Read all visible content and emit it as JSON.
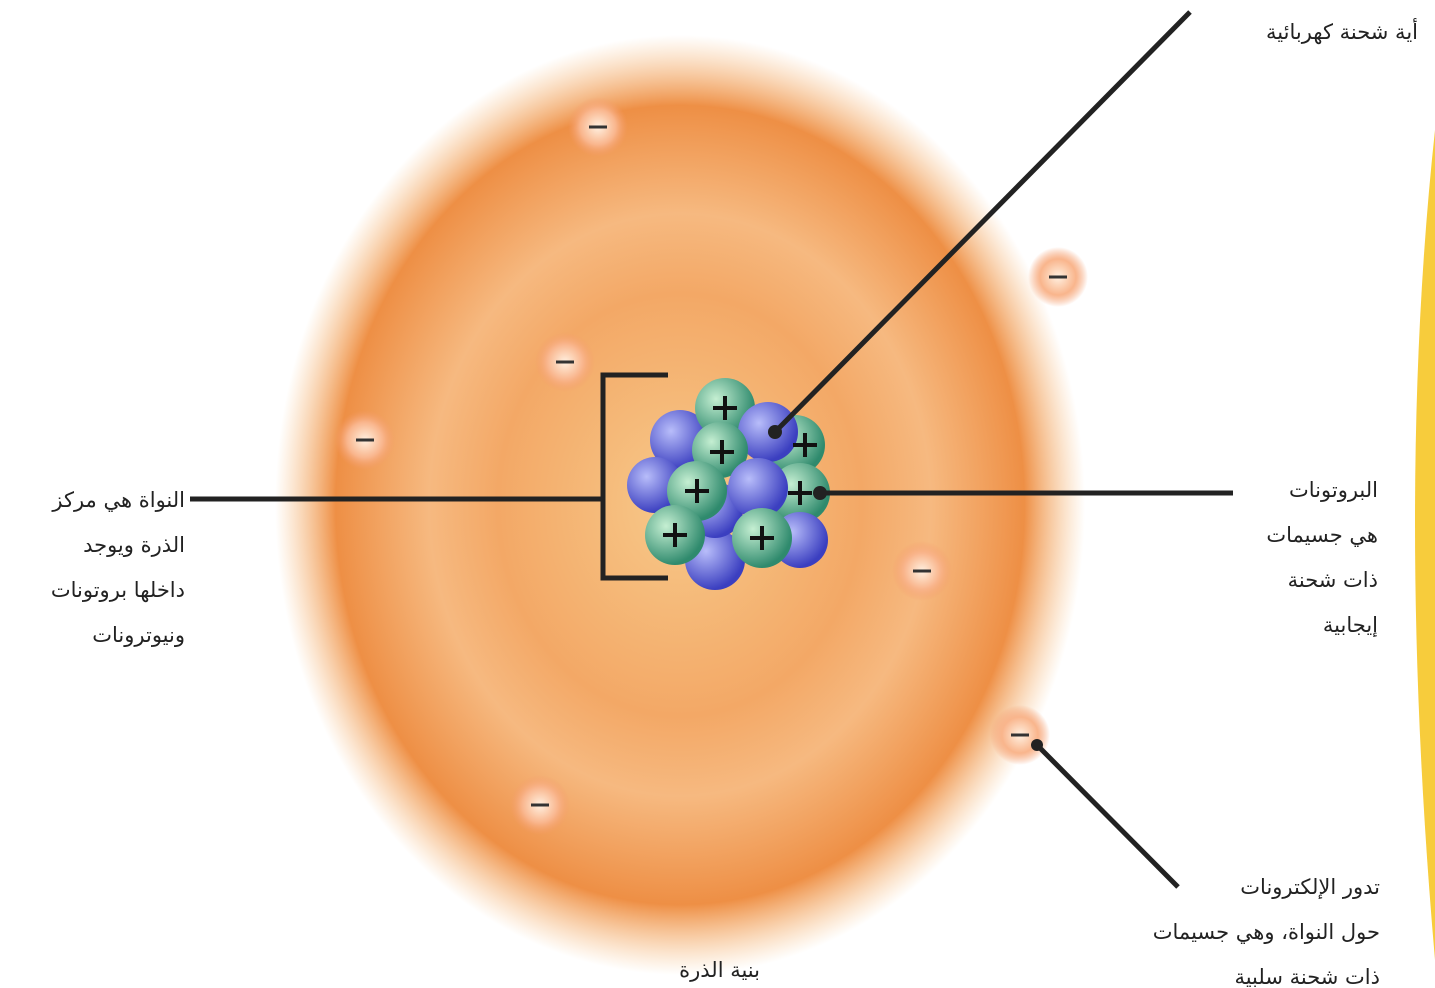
{
  "neutrons_label": {
    "lines": [
      "أية شحنة كهربائية"
    ]
  },
  "nucleus_label": {
    "lines": [
      "النواة هي مركز",
      "الذرة ويوجد",
      "داخلها بروتونات",
      "ونيوترونات"
    ]
  },
  "protons_label": {
    "lines": [
      "البروتونات",
      "هي جسيمات",
      "ذات شحنة",
      "إيجابية"
    ]
  },
  "electrons_label": {
    "lines": [
      "تدور الإلكترونات",
      "حول النواة، وهي جسيمات",
      "ذات شحنة سلبية"
    ]
  },
  "caption": "بنية الذرة"
}
